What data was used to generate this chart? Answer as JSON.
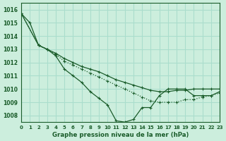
{
  "bg_color": "#cceedd",
  "grid_color": "#aaddcc",
  "line_color": "#1a5c2a",
  "marker_color": "#1a5c2a",
  "xlabel": "Graphe pression niveau de la mer (hPa)",
  "xlim": [
    0,
    23
  ],
  "ylim": [
    1007.5,
    1016.5
  ],
  "yticks": [
    1008,
    1009,
    1010,
    1011,
    1012,
    1013,
    1014,
    1015,
    1016
  ],
  "xticks": [
    0,
    1,
    2,
    3,
    4,
    5,
    6,
    7,
    8,
    9,
    10,
    11,
    12,
    13,
    14,
    15,
    16,
    17,
    18,
    19,
    20,
    21,
    22,
    23
  ],
  "series1": [
    1015.7,
    1015.0,
    1013.3,
    1013.0,
    1012.5,
    1011.5,
    1011.0,
    1010.5,
    1009.8,
    1009.3,
    1008.8,
    1007.6,
    1007.5,
    1007.7,
    1008.6,
    1008.6,
    1009.5,
    1010.0,
    1010.0,
    1010.0,
    1009.5,
    1009.5,
    1009.5,
    1009.8
  ],
  "series2": [
    1015.7,
    null,
    1013.3,
    1013.0,
    1012.6,
    1012.1,
    1011.8,
    1011.5,
    1011.2,
    1010.9,
    1010.6,
    1010.3,
    1010.0,
    1009.7,
    1009.4,
    1009.1,
    1009.0,
    1009.0,
    1009.0,
    1009.2,
    1009.2,
    1009.4,
    1009.5,
    1009.7
  ],
  "series3": [
    1015.7,
    null,
    1013.3,
    1013.0,
    1012.7,
    1012.3,
    1012.0,
    1011.7,
    1011.5,
    1011.3,
    1011.0,
    1010.7,
    1010.5,
    1010.3,
    1010.1,
    1009.9,
    1009.8,
    1009.8,
    1009.9,
    1009.9,
    1010.0,
    1010.0,
    1010.0,
    1010.0
  ]
}
